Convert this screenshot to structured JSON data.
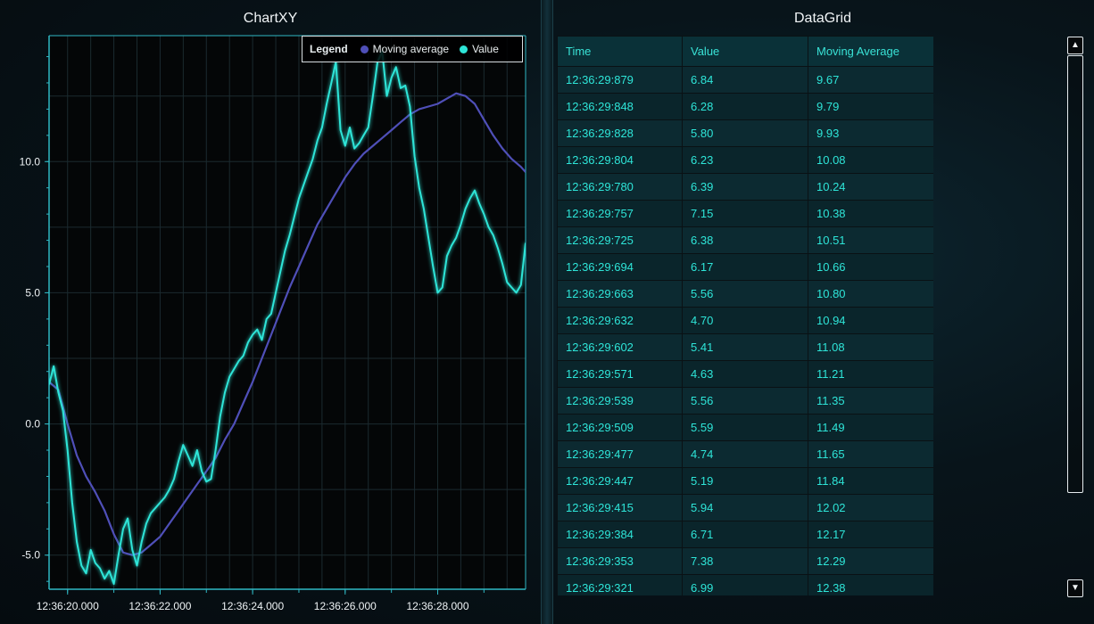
{
  "chart_panel": {
    "title": "ChartXY"
  },
  "grid_panel": {
    "title": "DataGrid"
  },
  "legend": {
    "heading": "Legend",
    "entries": [
      {
        "label": "Moving average",
        "color": "#4f4fb8"
      },
      {
        "label": "Value",
        "color": "#2ee5d8"
      }
    ]
  },
  "chart_data": {
    "type": "line",
    "title": "ChartXY",
    "xlabel": "",
    "ylabel": "",
    "x_start": "12:36:19.600",
    "x_end": "12:36:29.900",
    "ylim": [
      -6.3,
      14.8
    ],
    "x_tick_labels": [
      "12:36:20.000",
      "12:36:22.000",
      "12:36:24.000",
      "12:36:26.000",
      "12:36:28.000"
    ],
    "y_tick_labels": [
      "-5.0",
      "0.0",
      "5.0",
      "10.0"
    ],
    "grid": true,
    "legend_position": "top-right",
    "series": [
      {
        "name": "Value",
        "color": "#2ee5d8",
        "x": [
          "12:36:19.600",
          "12:36:19.700",
          "12:36:19.800",
          "12:36:19.900",
          "12:36:20.000",
          "12:36:20.100",
          "12:36:20.200",
          "12:36:20.300",
          "12:36:20.400",
          "12:36:20.500",
          "12:36:20.600",
          "12:36:20.700",
          "12:36:20.800",
          "12:36:20.900",
          "12:36:21.000",
          "12:36:21.100",
          "12:36:21.200",
          "12:36:21.300",
          "12:36:21.400",
          "12:36:21.500",
          "12:36:21.600",
          "12:36:21.700",
          "12:36:21.800",
          "12:36:21.900",
          "12:36:22.000",
          "12:36:22.100",
          "12:36:22.200",
          "12:36:22.300",
          "12:36:22.400",
          "12:36:22.500",
          "12:36:22.600",
          "12:36:22.700",
          "12:36:22.800",
          "12:36:22.900",
          "12:36:23.000",
          "12:36:23.100",
          "12:36:23.200",
          "12:36:23.300",
          "12:36:23.400",
          "12:36:23.500",
          "12:36:23.600",
          "12:36:23.700",
          "12:36:23.800",
          "12:36:23.900",
          "12:36:24.000",
          "12:36:24.100",
          "12:36:24.200",
          "12:36:24.300",
          "12:36:24.400",
          "12:36:24.500",
          "12:36:24.600",
          "12:36:24.700",
          "12:36:24.800",
          "12:36:24.900",
          "12:36:25.000",
          "12:36:25.100",
          "12:36:25.200",
          "12:36:25.300",
          "12:36:25.400",
          "12:36:25.500",
          "12:36:25.600",
          "12:36:25.700",
          "12:36:25.800",
          "12:36:25.900",
          "12:36:26.000",
          "12:36:26.100",
          "12:36:26.200",
          "12:36:26.300",
          "12:36:26.400",
          "12:36:26.500",
          "12:36:26.600",
          "12:36:26.700",
          "12:36:26.800",
          "12:36:26.900",
          "12:36:27.000",
          "12:36:27.100",
          "12:36:27.200",
          "12:36:27.300",
          "12:36:27.400",
          "12:36:27.500",
          "12:36:27.600",
          "12:36:27.700",
          "12:36:27.800",
          "12:36:27.900",
          "12:36:28.000",
          "12:36:28.100",
          "12:36:28.200",
          "12:36:28.300",
          "12:36:28.400",
          "12:36:28.500",
          "12:36:28.600",
          "12:36:28.700",
          "12:36:28.800",
          "12:36:28.900",
          "12:36:29.000",
          "12:36:29.100",
          "12:36:29.200",
          "12:36:29.300",
          "12:36:29.400",
          "12:36:29.500",
          "12:36:29.600",
          "12:36:29.700",
          "12:36:29.800",
          "12:36:29.900"
        ],
        "y": [
          1.5,
          2.2,
          1.2,
          0.5,
          -1.0,
          -3.0,
          -4.5,
          -5.4,
          -5.7,
          -4.8,
          -5.3,
          -5.5,
          -5.9,
          -5.6,
          -6.1,
          -5.0,
          -4.0,
          -3.6,
          -4.8,
          -5.4,
          -4.5,
          -3.8,
          -3.4,
          -3.2,
          -3.0,
          -2.8,
          -2.5,
          -2.1,
          -1.4,
          -0.8,
          -1.2,
          -1.6,
          -1.0,
          -1.8,
          -2.2,
          -2.1,
          -1.0,
          0.3,
          1.2,
          1.8,
          2.1,
          2.4,
          2.6,
          3.1,
          3.4,
          3.6,
          3.2,
          4.0,
          4.2,
          5.0,
          5.8,
          6.6,
          7.2,
          7.9,
          8.6,
          9.1,
          9.6,
          10.1,
          10.8,
          11.3,
          12.2,
          13.0,
          13.8,
          11.2,
          10.6,
          11.3,
          10.5,
          10.7,
          11.0,
          11.3,
          12.5,
          13.8,
          14.2,
          12.5,
          13.2,
          13.6,
          12.8,
          12.9,
          12.1,
          10.2,
          9.0,
          8.2,
          7.1,
          6.0,
          5.0,
          5.2,
          6.4,
          6.8,
          7.1,
          7.6,
          8.2,
          8.6,
          8.9,
          8.4,
          8.0,
          7.5,
          7.2,
          6.7,
          6.1,
          5.4,
          5.2,
          5.0,
          5.3,
          6.9
        ],
        "note": ""
      },
      {
        "name": "Moving average",
        "color": "#4f4fb8",
        "x": [
          "12:36:19.600",
          "12:36:19.800",
          "12:36:20.000",
          "12:36:20.200",
          "12:36:20.400",
          "12:36:20.600",
          "12:36:20.800",
          "12:36:21.000",
          "12:36:21.200",
          "12:36:21.400",
          "12:36:21.600",
          "12:36:21.800",
          "12:36:22.000",
          "12:36:22.200",
          "12:36:22.400",
          "12:36:22.600",
          "12:36:22.800",
          "12:36:23.000",
          "12:36:23.200",
          "12:36:23.400",
          "12:36:23.600",
          "12:36:23.800",
          "12:36:24.000",
          "12:36:24.200",
          "12:36:24.400",
          "12:36:24.600",
          "12:36:24.800",
          "12:36:25.000",
          "12:36:25.200",
          "12:36:25.400",
          "12:36:25.600",
          "12:36:25.800",
          "12:36:26.000",
          "12:36:26.200",
          "12:36:26.400",
          "12:36:26.600",
          "12:36:26.800",
          "12:36:27.000",
          "12:36:27.200",
          "12:36:27.400",
          "12:36:27.600",
          "12:36:27.800",
          "12:36:28.000",
          "12:36:28.200",
          "12:36:28.400",
          "12:36:28.600",
          "12:36:28.800",
          "12:36:29.000",
          "12:36:29.200",
          "12:36:29.400",
          "12:36:29.600",
          "12:36:29.800",
          "12:36:29.900"
        ],
        "y": [
          1.6,
          1.3,
          0.0,
          -1.2,
          -2.0,
          -2.6,
          -3.3,
          -4.2,
          -4.9,
          -5.0,
          -4.9,
          -4.6,
          -4.3,
          -3.8,
          -3.3,
          -2.8,
          -2.3,
          -1.8,
          -1.3,
          -0.6,
          0.0,
          0.8,
          1.6,
          2.5,
          3.4,
          4.3,
          5.2,
          6.0,
          6.8,
          7.6,
          8.2,
          8.8,
          9.4,
          9.9,
          10.3,
          10.6,
          10.9,
          11.2,
          11.5,
          11.8,
          12.0,
          12.1,
          12.2,
          12.4,
          12.6,
          12.5,
          12.2,
          11.6,
          11.0,
          10.5,
          10.1,
          9.8,
          9.6
        ]
      }
    ]
  },
  "datagrid": {
    "columns": [
      "Time",
      "Value",
      "Moving Average"
    ],
    "rows": [
      [
        "12:36:29:879",
        "6.84",
        "9.67"
      ],
      [
        "12:36:29:848",
        "6.28",
        "9.79"
      ],
      [
        "12:36:29:828",
        "5.80",
        "9.93"
      ],
      [
        "12:36:29:804",
        "6.23",
        "10.08"
      ],
      [
        "12:36:29:780",
        "6.39",
        "10.24"
      ],
      [
        "12:36:29:757",
        "7.15",
        "10.38"
      ],
      [
        "12:36:29:725",
        "6.38",
        "10.51"
      ],
      [
        "12:36:29:694",
        "6.17",
        "10.66"
      ],
      [
        "12:36:29:663",
        "5.56",
        "10.80"
      ],
      [
        "12:36:29:632",
        "4.70",
        "10.94"
      ],
      [
        "12:36:29:602",
        "5.41",
        "11.08"
      ],
      [
        "12:36:29:571",
        "4.63",
        "11.21"
      ],
      [
        "12:36:29:539",
        "5.56",
        "11.35"
      ],
      [
        "12:36:29:509",
        "5.59",
        "11.49"
      ],
      [
        "12:36:29:477",
        "4.74",
        "11.65"
      ],
      [
        "12:36:29:447",
        "5.19",
        "11.84"
      ],
      [
        "12:36:29:415",
        "5.94",
        "12.02"
      ],
      [
        "12:36:29:384",
        "6.71",
        "12.17"
      ],
      [
        "12:36:29:353",
        "7.38",
        "12.29"
      ],
      [
        "12:36:29:321",
        "6.99",
        "12.38"
      ]
    ]
  },
  "scrollbar": {
    "up_icon": "▲",
    "down_icon": "▼"
  }
}
